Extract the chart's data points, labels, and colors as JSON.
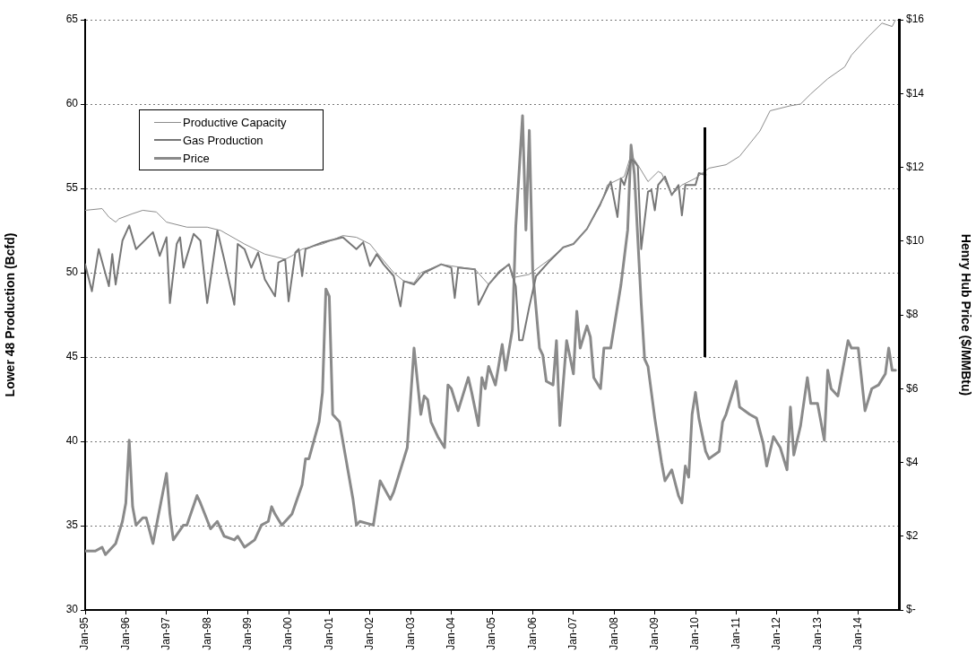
{
  "chart_data": {
    "type": "line",
    "ylabel": "Lower 48 Production (Bcfd)",
    "y2label": "Henry Hub Price ($/MMBtu)",
    "xlim": [
      "1995-01",
      "2015-01"
    ],
    "xticks": [
      {
        "value": "1995-01",
        "label": "Jan-95"
      },
      {
        "value": "1996-01",
        "label": "Jan-96"
      },
      {
        "value": "1997-01",
        "label": "Jan-97"
      },
      {
        "value": "1998-01",
        "label": "Jan-98"
      },
      {
        "value": "1999-01",
        "label": "Jan-99"
      },
      {
        "value": "2000-01",
        "label": "Jan-00"
      },
      {
        "value": "2001-01",
        "label": "Jan-01"
      },
      {
        "value": "2002-01",
        "label": "Jan-02"
      },
      {
        "value": "2003-01",
        "label": "Jan-03"
      },
      {
        "value": "2004-01",
        "label": "Jan-04"
      },
      {
        "value": "2005-01",
        "label": "Jan-05"
      },
      {
        "value": "2006-01",
        "label": "Jan-06"
      },
      {
        "value": "2007-01",
        "label": "Jan-07"
      },
      {
        "value": "2008-01",
        "label": "Jan-08"
      },
      {
        "value": "2009-01",
        "label": "Jan-09"
      },
      {
        "value": "2010-01",
        "label": "Jan-10"
      },
      {
        "value": "2011-01",
        "label": "Jan-11"
      },
      {
        "value": "2012-01",
        "label": "Jan-12"
      },
      {
        "value": "2013-01",
        "label": "Jan-13"
      },
      {
        "value": "2014-01",
        "label": "Jan-14"
      }
    ],
    "ylim": [
      30,
      65
    ],
    "yticks": [
      30,
      35,
      40,
      45,
      50,
      55,
      60,
      65
    ],
    "y2lim": [
      0,
      16
    ],
    "y2ticks": [
      {
        "value": 0,
        "label": "$-"
      },
      {
        "value": 2,
        "label": "$2"
      },
      {
        "value": 4,
        "label": "$4"
      },
      {
        "value": 6,
        "label": "$6"
      },
      {
        "value": 8,
        "label": "$8"
      },
      {
        "value": 10,
        "label": "$10"
      },
      {
        "value": 12,
        "label": "$12"
      },
      {
        "value": 14,
        "label": "$14"
      },
      {
        "value": 16,
        "label": "$16"
      }
    ],
    "grid": "y",
    "legend": "top left",
    "marker": "none",
    "line_style": "solid",
    "series": [
      {
        "name": "Productive Capacity",
        "color": "#8c8c8c",
        "x": [
          "1995-01",
          "1995-06",
          "1995-08",
          "1995-10",
          "1995-11",
          "1996-03",
          "1996-06",
          "1996-10",
          "1997-01",
          "1997-07",
          "1998-01",
          "1998-05",
          "1998-12",
          "1999-06",
          "1999-12",
          "2000-02",
          "2000-05",
          "2000-11",
          "2001-05",
          "2001-09",
          "2002-01",
          "2002-03",
          "2002-08",
          "2002-11",
          "2003-02",
          "2003-04",
          "2003-10",
          "2004-01",
          "2004-08",
          "2004-12",
          "2005-03",
          "2005-06",
          "2005-07",
          "2005-12",
          "2006-06",
          "2006-10",
          "2007-01",
          "2007-05",
          "2007-09",
          "2007-11",
          "2008-04",
          "2008-06",
          "2008-08",
          "2008-11",
          "2009-02",
          "2009-03",
          "2009-06",
          "2009-09",
          "2010-01",
          "2010-05",
          "2010-10",
          "2011-02",
          "2011-08",
          "2011-11",
          "2012-05",
          "2012-08",
          "2012-11",
          "2013-04",
          "2013-09",
          "2013-11",
          "2014-04",
          "2014-08",
          "2014-11",
          "2014-12"
        ],
        "values": [
          53.7,
          53.8,
          53.3,
          53.0,
          53.2,
          53.5,
          53.7,
          53.6,
          53.0,
          52.7,
          52.7,
          52.5,
          51.7,
          51.1,
          50.8,
          51.0,
          51.4,
          51.7,
          52.2,
          52.1,
          51.7,
          51.2,
          50.0,
          49.5,
          49.4,
          50.0,
          50.5,
          50.4,
          50.2,
          49.3,
          50.1,
          50.5,
          49.7,
          49.9,
          50.8,
          51.5,
          51.7,
          52.6,
          54.0,
          55.2,
          55.7,
          57.0,
          56.4,
          55.4,
          56.0,
          55.9,
          54.6,
          55.2,
          55.6,
          56.2,
          56.4,
          56.9,
          58.4,
          59.6,
          59.9,
          60.0,
          60.6,
          61.5,
          62.2,
          62.9,
          64.0,
          64.8,
          64.6,
          65.0
        ]
      },
      {
        "name": "Gas Production",
        "color": "#777777",
        "x": [
          "1995-01",
          "1995-03",
          "1995-05",
          "1995-08",
          "1995-09",
          "1995-10",
          "1995-12",
          "1996-02",
          "1996-04",
          "1996-07",
          "1996-09",
          "1996-11",
          "1997-01",
          "1997-02",
          "1997-04",
          "1997-05",
          "1997-06",
          "1997-09",
          "1997-11",
          "1998-01",
          "1998-04",
          "1998-06",
          "1998-09",
          "1998-10",
          "1998-12",
          "1999-02",
          "1999-04",
          "1999-06",
          "1999-09",
          "1999-10",
          "1999-12",
          "2000-01",
          "2000-03",
          "2000-04",
          "2000-05",
          "2000-06",
          "2000-11",
          "2001-05",
          "2001-09",
          "2001-11",
          "2002-01",
          "2002-03",
          "2002-05",
          "2002-08",
          "2002-10",
          "2002-11",
          "2003-02",
          "2003-05",
          "2003-10",
          "2004-01",
          "2004-02",
          "2004-03",
          "2004-08",
          "2004-09",
          "2004-12",
          "2005-03",
          "2005-06",
          "2005-08",
          "2005-09",
          "2005-10",
          "2005-12",
          "2006-02",
          "2006-06",
          "2006-10",
          "2007-01",
          "2007-05",
          "2007-09",
          "2007-12",
          "2008-02",
          "2008-03",
          "2008-04",
          "2008-06",
          "2008-07",
          "2008-08",
          "2008-09",
          "2008-11",
          "2008-12",
          "2009-01",
          "2009-02",
          "2009-04",
          "2009-06",
          "2009-08",
          "2009-09",
          "2009-10",
          "2010-01",
          "2010-02",
          "2010-04"
        ],
        "values": [
          50.5,
          48.9,
          51.4,
          49.2,
          51.1,
          49.3,
          51.9,
          52.8,
          51.4,
          52.0,
          52.4,
          51.0,
          52.1,
          48.2,
          51.7,
          52.1,
          50.3,
          52.3,
          51.9,
          48.2,
          52.5,
          50.8,
          48.1,
          51.7,
          51.4,
          50.3,
          51.2,
          49.6,
          48.6,
          50.6,
          50.8,
          48.3,
          51.2,
          51.4,
          49.8,
          51.4,
          51.8,
          52.1,
          51.4,
          51.8,
          50.4,
          51.1,
          50.5,
          49.8,
          48.0,
          49.5,
          49.3,
          50.0,
          50.5,
          50.3,
          48.5,
          50.3,
          50.2,
          48.1,
          49.3,
          50.0,
          50.5,
          49.2,
          46.0,
          46.0,
          48.0,
          49.8,
          50.7,
          51.5,
          51.7,
          52.6,
          54.1,
          55.4,
          53.3,
          55.6,
          55.2,
          56.7,
          56.6,
          56.3,
          51.4,
          54.8,
          54.9,
          53.7,
          55.2,
          55.7,
          54.6,
          55.2,
          53.4,
          55.2,
          55.2,
          55.9,
          55.8
        ]
      },
      {
        "name": "Price",
        "color": "#8a8a8a",
        "axis": "y2",
        "x": [
          "1995-01",
          "1995-04",
          "1995-06",
          "1995-07",
          "1995-10",
          "1995-12",
          "1996-01",
          "1996-02",
          "1996-03",
          "1996-04",
          "1996-06",
          "1996-07",
          "1996-09",
          "1997-01",
          "1997-02",
          "1997-03",
          "1997-06",
          "1997-07",
          "1997-10",
          "1997-11",
          "1998-02",
          "1998-04",
          "1998-06",
          "1998-09",
          "1998-10",
          "1998-12",
          "1999-03",
          "1999-05",
          "1999-07",
          "1999-08",
          "1999-09",
          "1999-11",
          "2000-02",
          "2000-05",
          "2000-06",
          "2000-07",
          "2000-10",
          "2000-11",
          "2000-12",
          "2001-01",
          "2001-02",
          "2001-04",
          "2001-08",
          "2001-09",
          "2001-10",
          "2002-02",
          "2002-04",
          "2002-07",
          "2002-08",
          "2002-11",
          "2002-12",
          "2003-02",
          "2003-04",
          "2003-05",
          "2003-06",
          "2003-07",
          "2003-09",
          "2003-11",
          "2003-12",
          "2004-01",
          "2004-03",
          "2004-06",
          "2004-07",
          "2004-09",
          "2004-10",
          "2004-11",
          "2004-12",
          "2005-02",
          "2005-04",
          "2005-05",
          "2005-07",
          "2005-08",
          "2005-10",
          "2005-11",
          "2005-12",
          "2006-01",
          "2006-03",
          "2006-04",
          "2006-05",
          "2006-07",
          "2006-08",
          "2006-09",
          "2006-11",
          "2007-01",
          "2007-02",
          "2007-03",
          "2007-05",
          "2007-06",
          "2007-07",
          "2007-09",
          "2007-10",
          "2007-12",
          "2008-03",
          "2008-05",
          "2008-06",
          "2008-07",
          "2008-09",
          "2008-10",
          "2008-11",
          "2009-01",
          "2009-03",
          "2009-04",
          "2009-06",
          "2009-08",
          "2009-09",
          "2009-10",
          "2009-11",
          "2009-12",
          "2010-01",
          "2010-02",
          "2010-04",
          "2010-05",
          "2010-08",
          "2010-09",
          "2010-10",
          "2011-01",
          "2011-02",
          "2011-05",
          "2011-07",
          "2011-09",
          "2011-10",
          "2011-12",
          "2012-02",
          "2012-04",
          "2012-05",
          "2012-06",
          "2012-08",
          "2012-10",
          "2012-11",
          "2013-01",
          "2013-03",
          "2013-04",
          "2013-05",
          "2013-07",
          "2013-10",
          "2013-11",
          "2014-01",
          "2014-03",
          "2014-05",
          "2014-07",
          "2014-09",
          "2014-10",
          "2014-11",
          "2014-12"
        ],
        "values": [
          1.6,
          1.6,
          1.7,
          1.5,
          1.8,
          2.4,
          2.9,
          4.6,
          2.8,
          2.3,
          2.5,
          2.5,
          1.8,
          3.7,
          2.6,
          1.9,
          2.3,
          2.3,
          3.1,
          2.9,
          2.2,
          2.4,
          2.0,
          1.9,
          2.0,
          1.7,
          1.9,
          2.3,
          2.4,
          2.8,
          2.6,
          2.3,
          2.6,
          3.4,
          4.1,
          4.1,
          5.1,
          5.9,
          8.7,
          8.5,
          5.3,
          5.1,
          3.0,
          2.3,
          2.4,
          2.3,
          3.5,
          3.0,
          3.2,
          4.1,
          4.4,
          7.1,
          5.3,
          5.8,
          5.7,
          5.1,
          4.7,
          4.4,
          6.1,
          6.0,
          5.4,
          6.3,
          5.9,
          5.0,
          6.3,
          6.0,
          6.6,
          6.1,
          7.2,
          6.5,
          7.6,
          10.4,
          13.4,
          10.3,
          13.0,
          9.2,
          7.1,
          6.9,
          6.2,
          6.1,
          7.3,
          5.0,
          7.3,
          6.4,
          8.1,
          7.1,
          7.7,
          7.4,
          6.3,
          6.0,
          7.1,
          7.1,
          8.8,
          10.3,
          12.6,
          11.8,
          8.3,
          6.8,
          6.6,
          5.2,
          4.0,
          3.5,
          3.8,
          3.1,
          2.9,
          3.9,
          3.6,
          5.3,
          5.9,
          5.2,
          4.3,
          4.1,
          4.3,
          5.1,
          5.3,
          6.2,
          5.5,
          5.3,
          5.2,
          4.5,
          3.9,
          4.7,
          4.4,
          3.8,
          5.5,
          4.2,
          5.0,
          6.3,
          5.6,
          5.6,
          4.6,
          6.5,
          6.0,
          5.8,
          7.3,
          7.1,
          7.1,
          5.4,
          6.0,
          6.1,
          6.4,
          7.1,
          6.5,
          6.5
        ]
      }
    ]
  }
}
